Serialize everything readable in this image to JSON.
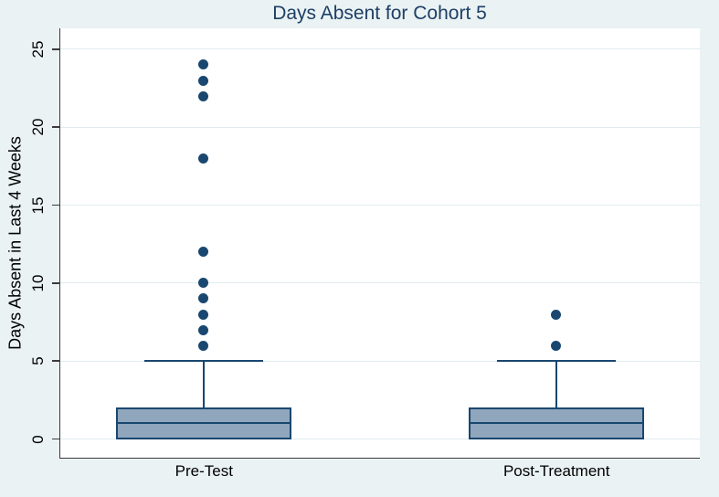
{
  "chart_data": {
    "type": "box",
    "title": "Days Absent for Cohort 5",
    "ylabel": "Days Absent in Last 4 Weeks",
    "xlabel": "",
    "categories": [
      "Pre-Test",
      "Post-Treatment"
    ],
    "yticks": [
      0,
      5,
      10,
      15,
      20,
      25
    ],
    "ylim": [
      -1.17,
      26.34
    ],
    "grid": "horizontal-light",
    "legend": "none",
    "series": [
      {
        "category": "Pre-Test",
        "q1": 0,
        "median": 1,
        "q3": 2,
        "whisker_low": 0,
        "whisker_high": 5,
        "outliers": [
          6,
          7,
          8,
          9,
          10,
          12,
          18,
          22,
          23,
          24
        ],
        "center_frac": 0.2243
      },
      {
        "category": "Post-Treatment",
        "q1": 0,
        "median": 1,
        "q3": 2,
        "whisker_low": 0,
        "whisker_high": 5,
        "outliers": [
          6,
          8
        ],
        "center_frac": 0.7764
      }
    ]
  },
  "colors": {
    "background": "#eaf2f3",
    "plot_background": "#ffffff",
    "gridline": "#e0ecef",
    "axis": "#3b3b3b",
    "box_fill": "#8fa6bd",
    "box_border": "#1a476f",
    "outlier_dot": "#1a476f",
    "title": "#1e3f66",
    "tick_label": "#000000"
  }
}
